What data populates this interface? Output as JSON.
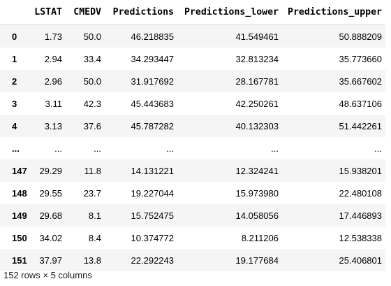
{
  "table": {
    "columns": [
      "",
      "LSTAT",
      "CMEDV",
      "Predictions",
      "Predictions_lower",
      "Predictions_upper"
    ],
    "rows": [
      {
        "index": "0",
        "cells": [
          "1.73",
          "50.0",
          "46.218835",
          "41.549461",
          "50.888209"
        ]
      },
      {
        "index": "1",
        "cells": [
          "2.94",
          "33.4",
          "34.293447",
          "32.813234",
          "35.773660"
        ]
      },
      {
        "index": "2",
        "cells": [
          "2.96",
          "50.0",
          "31.917692",
          "28.167781",
          "35.667602"
        ]
      },
      {
        "index": "3",
        "cells": [
          "3.11",
          "42.3",
          "45.443683",
          "42.250261",
          "48.637106"
        ]
      },
      {
        "index": "4",
        "cells": [
          "3.13",
          "37.6",
          "45.787282",
          "40.132303",
          "51.442261"
        ]
      },
      {
        "index": "...",
        "cells": [
          "...",
          "...",
          "...",
          "...",
          "..."
        ]
      },
      {
        "index": "147",
        "cells": [
          "29.29",
          "11.8",
          "14.131221",
          "12.324241",
          "15.938201"
        ]
      },
      {
        "index": "148",
        "cells": [
          "29.55",
          "23.7",
          "19.227044",
          "15.973980",
          "22.480108"
        ]
      },
      {
        "index": "149",
        "cells": [
          "29.68",
          "8.1",
          "15.752475",
          "14.058056",
          "17.446893"
        ]
      },
      {
        "index": "150",
        "cells": [
          "34.02",
          "8.4",
          "10.374772",
          "8.211206",
          "12.538338"
        ]
      },
      {
        "index": "151",
        "cells": [
          "37.97",
          "13.8",
          "22.292243",
          "19.177684",
          "25.406801"
        ]
      }
    ]
  },
  "footer": "152 rows × 5 columns"
}
